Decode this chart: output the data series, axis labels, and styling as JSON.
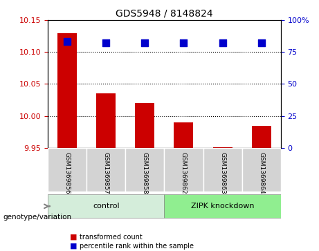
{
  "title": "GDS5948 / 8148824",
  "samples": [
    "GSM1369856",
    "GSM1369857",
    "GSM1369858",
    "GSM1369862",
    "GSM1369863",
    "GSM1369864"
  ],
  "bar_values": [
    10.13,
    10.035,
    10.02,
    9.99,
    9.951,
    9.985
  ],
  "percentile_values": [
    83,
    82,
    82,
    82,
    82,
    82
  ],
  "bar_bottom": 9.95,
  "ylim_left": [
    9.95,
    10.15
  ],
  "ylim_right": [
    0,
    100
  ],
  "yticks_left": [
    9.95,
    10.0,
    10.05,
    10.1,
    10.15
  ],
  "yticks_right": [
    0,
    25,
    50,
    75,
    100
  ],
  "ytick_labels_right": [
    "0",
    "25",
    "50",
    "75",
    "100%"
  ],
  "hlines": [
    10.0,
    10.05,
    10.1
  ],
  "bar_color": "#cc0000",
  "dot_color": "#0000cc",
  "control_samples": [
    "GSM1369856",
    "GSM1369857",
    "GSM1369858"
  ],
  "knockdown_samples": [
    "GSM1369862",
    "GSM1369863",
    "GSM1369864"
  ],
  "control_label": "control",
  "knockdown_label": "ZIPK knockdown",
  "genotype_label": "genotype/variation",
  "legend_bar_label": "transformed count",
  "legend_dot_label": "percentile rank within the sample",
  "control_color": "#d4edda",
  "knockdown_color": "#90ee90",
  "tick_color_left": "#cc0000",
  "tick_color_right": "#0000cc",
  "bar_width": 0.5,
  "dot_size": 60
}
